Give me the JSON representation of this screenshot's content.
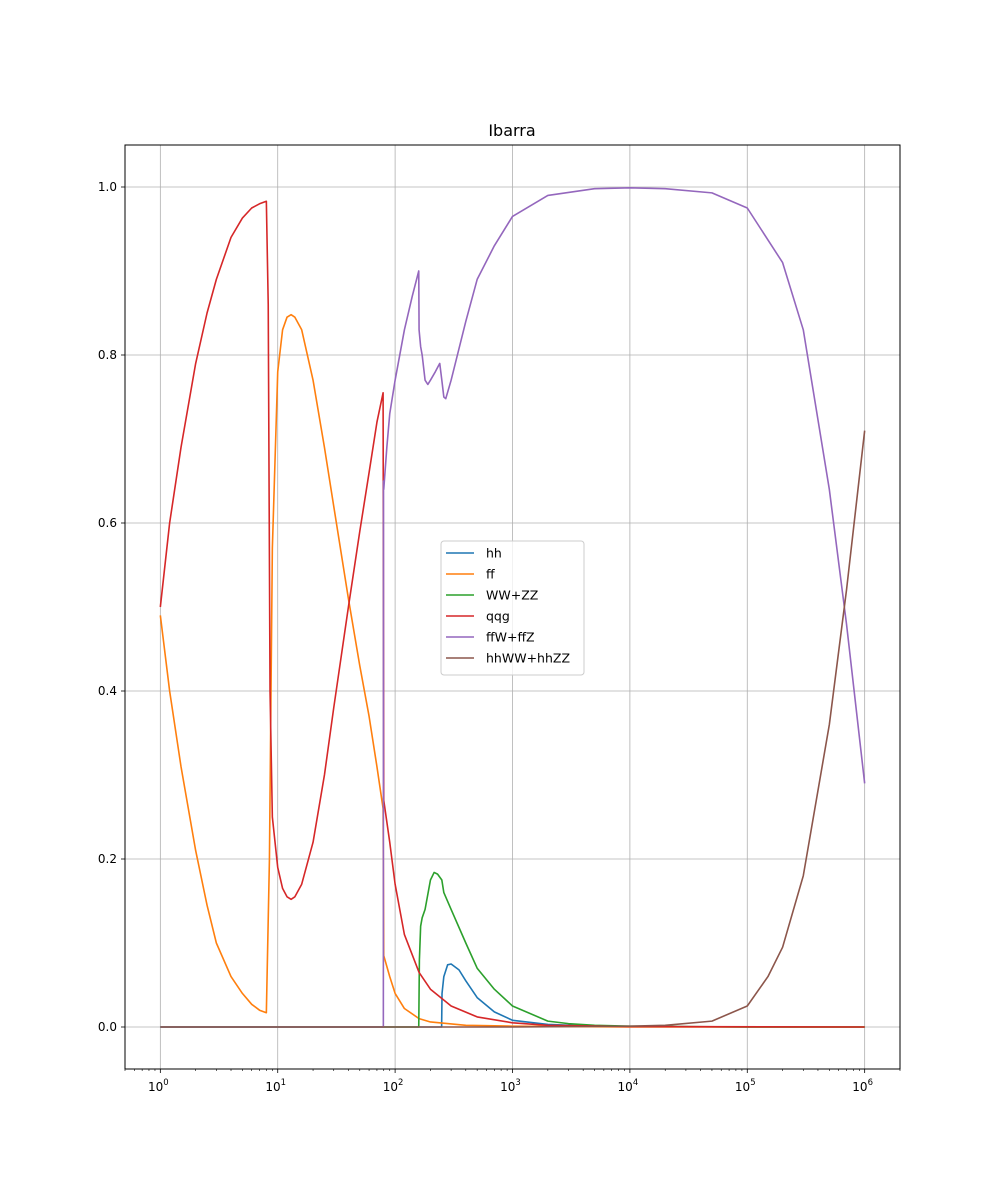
{
  "chart_data": {
    "type": "line",
    "title": "Ibarra",
    "xlabel": "",
    "ylabel": "",
    "xscale": "log",
    "xlim": [
      0.5,
      2000000
    ],
    "ylim": [
      -0.05,
      1.05
    ],
    "grid": true,
    "legend_position": "center",
    "x_ticks": [
      {
        "value": 1,
        "base": "10",
        "exp": "0"
      },
      {
        "value": 10,
        "base": "10",
        "exp": "1"
      },
      {
        "value": 100,
        "base": "10",
        "exp": "2"
      },
      {
        "value": 1000,
        "base": "10",
        "exp": "3"
      },
      {
        "value": 10000,
        "base": "10",
        "exp": "4"
      },
      {
        "value": 100000,
        "base": "10",
        "exp": "5"
      },
      {
        "value": 1000000,
        "base": "10",
        "exp": "6"
      }
    ],
    "y_ticks": [
      {
        "value": 0.0,
        "label": "0.0"
      },
      {
        "value": 0.2,
        "label": "0.2"
      },
      {
        "value": 0.4,
        "label": "0.4"
      },
      {
        "value": 0.6,
        "label": "0.6"
      },
      {
        "value": 0.8,
        "label": "0.8"
      },
      {
        "value": 1.0,
        "label": "1.0"
      }
    ],
    "series": [
      {
        "name": "hh",
        "color": "#1f77b4",
        "x": [
          1,
          10,
          100,
          249,
          251,
          260,
          280,
          300,
          350,
          400,
          500,
          700,
          1000,
          2000,
          5000,
          10000,
          100000,
          1000000
        ],
        "y": [
          0,
          0,
          0,
          0,
          0.04,
          0.06,
          0.074,
          0.075,
          0.068,
          0.055,
          0.035,
          0.018,
          0.008,
          0.003,
          0.001,
          0.0005,
          0,
          0
        ]
      },
      {
        "name": "ff",
        "color": "#ff7f0e",
        "x": [
          1,
          1.2,
          1.5,
          2,
          2.5,
          3,
          4,
          5,
          6,
          7,
          8,
          8.5,
          9,
          10,
          11,
          12,
          13,
          14,
          16,
          20,
          25,
          30,
          40,
          50,
          60,
          70,
          79,
          80,
          90,
          100,
          120,
          160,
          200,
          400,
          1000,
          10000,
          1000000
        ],
        "y": [
          0.49,
          0.4,
          0.31,
          0.21,
          0.145,
          0.1,
          0.06,
          0.04,
          0.027,
          0.02,
          0.017,
          0.2,
          0.57,
          0.78,
          0.83,
          0.845,
          0.848,
          0.845,
          0.83,
          0.77,
          0.69,
          0.62,
          0.51,
          0.43,
          0.37,
          0.31,
          0.26,
          0.085,
          0.06,
          0.04,
          0.022,
          0.01,
          0.006,
          0.002,
          0.001,
          0,
          0
        ]
      },
      {
        "name": "WW+ZZ",
        "color": "#2ca02c",
        "x": [
          1,
          10,
          100,
          159,
          161,
          165,
          170,
          180,
          200,
          215,
          230,
          250,
          260,
          300,
          400,
          500,
          700,
          1000,
          2000,
          3000,
          5000,
          10000,
          100000,
          1000000
        ],
        "y": [
          0,
          0,
          0,
          0,
          0.08,
          0.12,
          0.13,
          0.14,
          0.175,
          0.184,
          0.182,
          0.175,
          0.16,
          0.14,
          0.1,
          0.07,
          0.045,
          0.025,
          0.007,
          0.004,
          0.002,
          0.001,
          0,
          0
        ]
      },
      {
        "name": "qqg",
        "color": "#d62728",
        "x": [
          1,
          1.2,
          1.5,
          2,
          2.5,
          3,
          4,
          5,
          6,
          7,
          8,
          8.3,
          8.6,
          9,
          10,
          11,
          12,
          13,
          14,
          16,
          20,
          25,
          30,
          40,
          50,
          60,
          70,
          79,
          80,
          90,
          100,
          120,
          160,
          200,
          300,
          500,
          1000,
          2000,
          10000,
          1000000
        ],
        "y": [
          0.5,
          0.6,
          0.69,
          0.79,
          0.85,
          0.89,
          0.94,
          0.963,
          0.975,
          0.98,
          0.983,
          0.86,
          0.4,
          0.25,
          0.19,
          0.165,
          0.155,
          0.152,
          0.155,
          0.17,
          0.22,
          0.3,
          0.38,
          0.5,
          0.59,
          0.66,
          0.72,
          0.755,
          0.27,
          0.22,
          0.17,
          0.11,
          0.065,
          0.045,
          0.025,
          0.012,
          0.005,
          0.002,
          0.0005,
          0
        ]
      },
      {
        "name": "ffW+ffZ",
        "color": "#9467bd",
        "x": [
          1,
          10,
          79.4,
          79.6,
          80,
          85,
          90,
          100,
          120,
          140,
          159,
          160,
          165,
          170,
          180,
          190,
          200,
          220,
          240,
          250,
          260,
          270,
          300,
          400,
          500,
          700,
          1000,
          2000,
          5000,
          10000,
          20000,
          50000,
          100000,
          200000,
          300000,
          500000,
          700000,
          1000000
        ],
        "y": [
          0,
          0,
          0,
          0.65,
          0.64,
          0.69,
          0.73,
          0.77,
          0.83,
          0.87,
          0.9,
          0.83,
          0.81,
          0.8,
          0.77,
          0.765,
          0.77,
          0.78,
          0.79,
          0.77,
          0.75,
          0.748,
          0.77,
          0.84,
          0.89,
          0.93,
          0.965,
          0.99,
          0.998,
          0.999,
          0.998,
          0.993,
          0.975,
          0.91,
          0.83,
          0.64,
          0.48,
          0.29
        ]
      },
      {
        "name": "hhWW+hhZZ",
        "color": "#8c564b",
        "x": [
          1,
          1000,
          10000,
          20000,
          50000,
          100000,
          150000,
          200000,
          300000,
          500000,
          700000,
          1000000
        ],
        "y": [
          0,
          0,
          0.001,
          0.002,
          0.007,
          0.025,
          0.06,
          0.095,
          0.18,
          0.36,
          0.52,
          0.71
        ]
      }
    ]
  }
}
